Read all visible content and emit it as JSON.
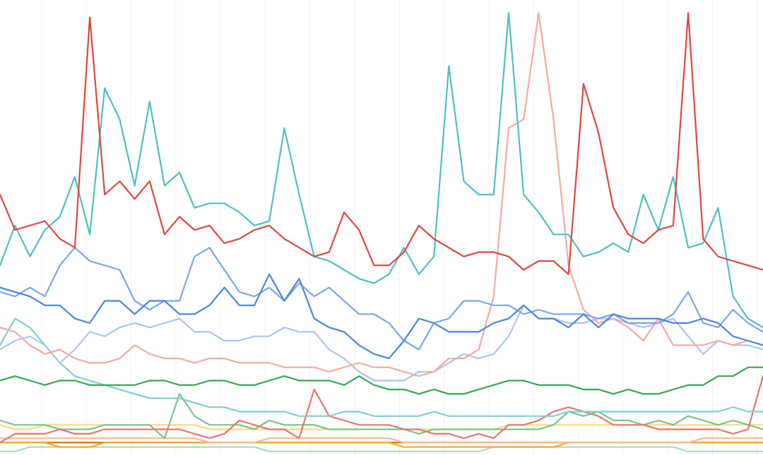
{
  "chart_data": {
    "type": "line",
    "title": "",
    "xlabel": "",
    "ylabel": "",
    "grid": "vertical",
    "legend": "none",
    "ylim": [
      0,
      100
    ],
    "x": [
      0,
      1,
      2,
      3,
      4,
      5,
      6,
      7,
      8,
      9,
      10,
      11,
      12,
      13,
      14,
      15,
      16,
      17,
      18,
      19,
      20,
      21,
      22,
      23,
      24,
      25,
      26,
      27,
      28,
      29,
      30,
      31,
      32,
      33,
      34,
      35,
      36,
      37,
      38,
      39,
      40,
      41,
      42,
      43,
      44,
      45,
      46,
      47,
      48,
      49,
      50,
      51
    ],
    "series": [
      {
        "color": "#e0473f",
        "values": [
          58,
          50,
          51,
          52,
          48,
          46,
          98,
          58,
          61,
          57,
          61,
          49,
          53,
          50,
          51,
          47,
          48,
          50,
          51,
          48,
          46,
          44,
          45,
          54,
          50,
          42,
          42,
          45,
          51,
          48,
          46,
          44,
          45,
          45,
          44,
          41,
          43,
          43,
          40,
          83,
          72,
          55,
          49,
          47,
          50,
          51,
          99,
          48,
          44,
          43,
          42,
          41
        ]
      },
      {
        "color": "#4fc0c4",
        "values": [
          42,
          51,
          44,
          50,
          53,
          62,
          49,
          82,
          75,
          60,
          79,
          60,
          63,
          55,
          56,
          56,
          54,
          51,
          52,
          73,
          58,
          44,
          43,
          41,
          39,
          38,
          40,
          46,
          40,
          44,
          87,
          61,
          58,
          58,
          99,
          58,
          54,
          49,
          49,
          44,
          45,
          47,
          45,
          58,
          50,
          62,
          46,
          47,
          55,
          35,
          30,
          28
        ]
      },
      {
        "color": "#4a86e0",
        "values": [
          37,
          36,
          35,
          33,
          33,
          30,
          29,
          34,
          34,
          31,
          34,
          34,
          31,
          31,
          33,
          37,
          33,
          33,
          40,
          34,
          39,
          30,
          28,
          27,
          24,
          22,
          21,
          25,
          30,
          29,
          27,
          27,
          27,
          29,
          30,
          33,
          30,
          30,
          28,
          31,
          28,
          31,
          30,
          30,
          30,
          29,
          29,
          30,
          29,
          26,
          25,
          24
        ]
      },
      {
        "color": "#7aa8ea",
        "values": [
          36,
          35,
          37,
          35,
          42,
          46,
          43,
          42,
          41,
          34,
          32,
          34,
          34,
          44,
          46,
          41,
          36,
          35,
          37,
          34,
          38,
          35,
          37,
          34,
          31,
          31,
          29,
          25,
          23,
          29,
          30,
          34,
          34,
          33,
          33,
          31,
          32,
          31,
          31,
          31,
          30,
          31,
          29,
          29,
          29,
          31,
          36,
          29,
          28,
          32,
          29,
          27
        ]
      },
      {
        "color": "#f4aaa2",
        "values": [
          28,
          27,
          24,
          22,
          23,
          21,
          20,
          20,
          21,
          24,
          22,
          21,
          21,
          20,
          21,
          21,
          20,
          20,
          20,
          19,
          19,
          19,
          18,
          19,
          20,
          19,
          19,
          18,
          17,
          18,
          21,
          21,
          23,
          35,
          73,
          75,
          99,
          75,
          42,
          32,
          29,
          30,
          28,
          25,
          30,
          24,
          24,
          24,
          25,
          24,
          25,
          24
        ]
      },
      {
        "color": "#aac5f2",
        "values": [
          23,
          25,
          26,
          24,
          20,
          23,
          27,
          26,
          28,
          29,
          28,
          29,
          30,
          27,
          27,
          25,
          25,
          26,
          26,
          28,
          27,
          27,
          23,
          21,
          18,
          16,
          16,
          16,
          18,
          18,
          20,
          22,
          21,
          22,
          26,
          33,
          30,
          30,
          29,
          29,
          30,
          30,
          29,
          28,
          29,
          30,
          26,
          22,
          25,
          24,
          24,
          23
        ]
      },
      {
        "color": "#34a853",
        "values": [
          16,
          17,
          16,
          15,
          16,
          16,
          15,
          15,
          15,
          15,
          16,
          16,
          15,
          15,
          16,
          16,
          15,
          15,
          16,
          17,
          16,
          16,
          16,
          15,
          17,
          15,
          14,
          14,
          13,
          14,
          13,
          13,
          14,
          15,
          16,
          16,
          15,
          15,
          15,
          14,
          14,
          13,
          14,
          13,
          13,
          14,
          15,
          15,
          17,
          17,
          19,
          19
        ]
      },
      {
        "color": "#7fd0cf",
        "values": [
          24,
          30,
          28,
          24,
          20,
          17,
          16,
          15,
          14,
          13,
          12,
          12,
          12,
          11,
          10,
          10,
          9,
          9,
          9,
          9,
          8,
          8,
          8,
          9,
          9,
          8,
          8,
          8,
          8,
          9,
          8,
          8,
          8,
          8,
          8,
          8,
          8,
          8,
          9,
          9,
          9,
          9,
          9,
          9,
          9,
          9,
          9,
          9,
          9,
          10,
          9,
          9
        ]
      },
      {
        "color": "#e8766b",
        "values": [
          2,
          4,
          4,
          4,
          5,
          4,
          4,
          5,
          5,
          5,
          5,
          5,
          5,
          4,
          3,
          4,
          7,
          6,
          5,
          5,
          3,
          14,
          8,
          7,
          6,
          6,
          6,
          5,
          5,
          4,
          4,
          3,
          4,
          3,
          6,
          6,
          7,
          9,
          10,
          9,
          8,
          6,
          6,
          6,
          5,
          5,
          5,
          5,
          5,
          4,
          5,
          17
        ]
      },
      {
        "color": "#7bc48c",
        "values": [
          7,
          6,
          6,
          6,
          5,
          5,
          5,
          6,
          6,
          6,
          6,
          3,
          13,
          8,
          6,
          6,
          6,
          5,
          7,
          6,
          6,
          6,
          5,
          5,
          5,
          5,
          5,
          5,
          4,
          5,
          5,
          5,
          5,
          5,
          5,
          5,
          5,
          6,
          9,
          8,
          9,
          7,
          7,
          6,
          7,
          6,
          8,
          7,
          6,
          7,
          6,
          5
        ]
      },
      {
        "color": "#fdd886",
        "values": [
          6,
          5,
          5,
          6,
          6,
          6,
          6,
          6,
          6,
          6,
          6,
          6,
          6,
          6,
          5,
          5,
          5,
          5,
          5,
          5,
          5,
          5,
          5,
          5,
          5,
          5,
          5,
          5,
          5,
          5,
          5,
          5,
          5,
          5,
          6,
          6,
          6,
          6,
          6,
          6,
          6,
          6,
          6,
          6,
          6,
          6,
          6,
          6,
          6,
          6,
          6,
          6
        ]
      },
      {
        "color": "#ffb98a",
        "values": [
          3,
          3,
          3,
          3,
          3,
          3,
          3,
          3,
          3,
          3,
          3,
          3,
          3,
          3,
          2,
          2,
          2,
          2,
          3,
          3,
          3,
          3,
          3,
          3,
          3,
          3,
          3,
          2,
          2,
          2,
          2,
          2,
          2,
          2,
          2,
          2,
          2,
          2,
          2,
          2,
          2,
          2,
          2,
          2,
          2,
          2,
          2,
          3,
          3,
          3,
          3,
          3
        ]
      },
      {
        "color": "#f9a825",
        "values": [
          2,
          2,
          2,
          2,
          1,
          1,
          1,
          2,
          2,
          2,
          2,
          2,
          2,
          2,
          2,
          2,
          2,
          2,
          2,
          2,
          2,
          2,
          2,
          2,
          2,
          2,
          2,
          1,
          1,
          1,
          1,
          1,
          1,
          1,
          1,
          1,
          1,
          1,
          2,
          2,
          2,
          2,
          2,
          2,
          2,
          2,
          2,
          2,
          2,
          2,
          2,
          2
        ]
      },
      {
        "color": "#e8710a",
        "values": [
          2,
          2,
          2,
          2,
          2,
          2,
          2,
          2,
          2,
          2,
          2,
          2,
          2,
          2,
          2,
          2,
          2,
          2,
          2,
          2,
          2,
          2,
          2,
          2,
          2,
          2,
          2,
          2,
          2,
          2,
          2,
          2,
          2,
          2,
          2,
          2,
          2,
          2,
          2,
          2,
          2,
          2,
          2,
          2,
          2,
          2,
          2,
          2,
          2,
          2,
          2,
          2
        ]
      },
      {
        "color": "#a8dcb4",
        "values": [
          0,
          0,
          1,
          1,
          1,
          1,
          1,
          1,
          1,
          1,
          1,
          1,
          1,
          1,
          1,
          1,
          1,
          1,
          0,
          0,
          0,
          0,
          0,
          0,
          0,
          0,
          0,
          0,
          0,
          0,
          0,
          0,
          0,
          1,
          1,
          1,
          1,
          1,
          1,
          1,
          1,
          1,
          1,
          1,
          1,
          1,
          0,
          0,
          0,
          0,
          0,
          0
        ]
      }
    ]
  }
}
